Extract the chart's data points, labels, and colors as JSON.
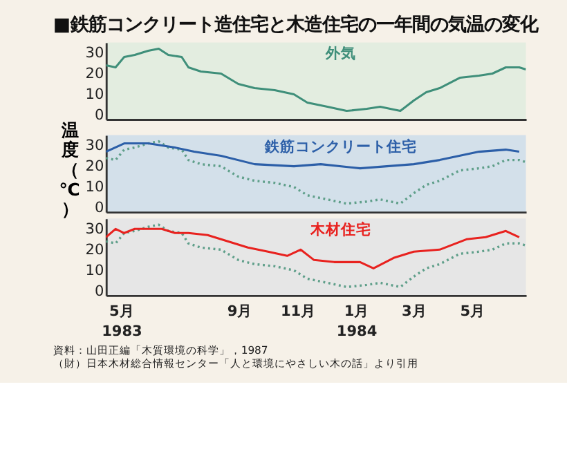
{
  "chart_data": [
    {
      "type": "line",
      "title": "■鉄筋コンクリート造住宅と木造住宅の一年間の気温の変化",
      "xlim": [
        "1983-04-15",
        "1984-06-26"
      ],
      "ylim": [
        -2,
        35
      ],
      "yticks": [
        0,
        10,
        20,
        30
      ],
      "tick_labels": "y",
      "grid": false,
      "marker": "none",
      "series": [
        {
          "name": "外気",
          "color": "#3f8f7a",
          "line_style": "solid",
          "x": [
            "1983-04-15",
            "1983-04-25",
            "1983-05-04",
            "1983-05-15",
            "1983-05-29",
            "1983-06-09",
            "1983-06-19",
            "1983-07-03",
            "1983-07-10",
            "1983-07-23",
            "1983-08-13",
            "1983-08-31",
            "1983-09-17",
            "1983-10-08",
            "1983-10-28",
            "1983-11-11",
            "1983-12-02",
            "1983-12-22",
            "1984-01-12",
            "1984-01-26",
            "1984-02-16",
            "1984-03-01",
            "1984-03-14",
            "1984-03-28",
            "1984-04-18",
            "1984-05-08",
            "1984-05-22",
            "1984-06-05",
            "1984-06-19",
            "1984-06-26"
          ],
          "values": [
            24,
            23,
            28,
            29,
            31,
            32,
            29,
            28,
            23,
            21,
            20,
            15,
            13,
            12,
            10,
            6,
            4,
            2,
            3,
            4,
            2,
            7,
            11,
            13,
            18,
            19,
            20,
            23,
            23,
            22
          ]
        }
      ]
    },
    {
      "type": "line",
      "xlim": [
        "1983-04-15",
        "1984-06-26"
      ],
      "ylim": [
        -2,
        35
      ],
      "yticks": [
        0,
        10,
        20,
        30
      ],
      "tick_labels": "y",
      "ylabel": "温度（℃）",
      "grid": false,
      "marker": "none",
      "series": [
        {
          "color": "#5f9f8a",
          "line_style": "dotted",
          "x": [
            "1983-04-15",
            "1983-04-25",
            "1983-05-04",
            "1983-05-15",
            "1983-05-29",
            "1983-06-09",
            "1983-06-19",
            "1983-07-03",
            "1983-07-10",
            "1983-07-23",
            "1983-08-13",
            "1983-08-31",
            "1983-09-17",
            "1983-10-08",
            "1983-10-28",
            "1983-11-11",
            "1983-12-02",
            "1983-12-22",
            "1984-01-12",
            "1984-01-26",
            "1984-02-16",
            "1984-03-01",
            "1984-03-14",
            "1984-03-28",
            "1984-04-18",
            "1984-05-08",
            "1984-05-22",
            "1984-06-05",
            "1984-06-19",
            "1984-06-26"
          ],
          "values": [
            24,
            23,
            28,
            29,
            31,
            32,
            29,
            28,
            23,
            21,
            20,
            15,
            13,
            12,
            10,
            6,
            4,
            2,
            3,
            4,
            2,
            7,
            11,
            13,
            18,
            19,
            20,
            23,
            23,
            22
          ]
        },
        {
          "name": "鉄筋コンクリート住宅",
          "color": "#2c5fa8",
          "line_style": "solid",
          "x": [
            "1983-04-15",
            "1983-05-04",
            "1983-05-29",
            "1983-06-26",
            "1983-07-16",
            "1983-08-13",
            "1983-09-17",
            "1983-10-28",
            "1983-11-25",
            "1984-01-05",
            "1984-02-02",
            "1984-03-01",
            "1984-03-28",
            "1984-05-08",
            "1984-06-05",
            "1984-06-19"
          ],
          "values": [
            27,
            31,
            31,
            29,
            27,
            25,
            21,
            20,
            21,
            19,
            20,
            21,
            23,
            27,
            28,
            27
          ]
        }
      ]
    },
    {
      "type": "line",
      "xlim": [
        "1983-04-15",
        "1984-06-26"
      ],
      "xticks": [
        {
          "value": "1983-05-01",
          "label": "5月\n1983"
        },
        {
          "value": "1983-09-01",
          "label": "9月"
        },
        {
          "value": "1983-11-01",
          "label": "11月"
        },
        {
          "value": "1984-01-01",
          "label": "1月\n1984"
        },
        {
          "value": "1984-03-01",
          "label": "3月"
        },
        {
          "value": "1984-05-01",
          "label": "5月"
        }
      ],
      "ylim": [
        -2,
        35
      ],
      "yticks": [
        0,
        10,
        20,
        30
      ],
      "grid": false,
      "marker": "none",
      "annotations": [
        "資料：山田正編「木質環境の科学」，1987",
        "（財）日本木材総合情報センター「人と環境にやさしい木の話」より引用"
      ],
      "series": [
        {
          "color": "#5f9f8a",
          "line_style": "dotted",
          "x": [
            "1983-04-15",
            "1983-04-25",
            "1983-05-04",
            "1983-05-15",
            "1983-05-29",
            "1983-06-09",
            "1983-06-19",
            "1983-07-03",
            "1983-07-10",
            "1983-07-23",
            "1983-08-13",
            "1983-08-31",
            "1983-09-17",
            "1983-10-08",
            "1983-10-28",
            "1983-11-11",
            "1983-12-02",
            "1983-12-22",
            "1984-01-12",
            "1984-01-26",
            "1984-02-16",
            "1984-03-01",
            "1984-03-14",
            "1984-03-28",
            "1984-04-18",
            "1984-05-08",
            "1984-05-22",
            "1984-06-05",
            "1984-06-19",
            "1984-06-26"
          ],
          "values": [
            24,
            23,
            28,
            29,
            31,
            32,
            29,
            28,
            23,
            21,
            20,
            15,
            13,
            12,
            10,
            6,
            4,
            2,
            3,
            4,
            2,
            7,
            11,
            13,
            18,
            19,
            20,
            23,
            23,
            22
          ]
        },
        {
          "name": "木材住宅",
          "color": "#e8221f",
          "line_style": "solid",
          "x": [
            "1983-04-15",
            "1983-04-25",
            "1983-05-04",
            "1983-05-15",
            "1983-06-12",
            "1983-06-26",
            "1983-07-10",
            "1983-07-30",
            "1983-08-20",
            "1983-09-10",
            "1983-10-01",
            "1983-10-21",
            "1983-11-04",
            "1983-11-18",
            "1983-12-09",
            "1984-01-05",
            "1984-01-19",
            "1984-02-09",
            "1984-03-01",
            "1984-03-28",
            "1984-04-25",
            "1984-05-15",
            "1984-06-05",
            "1984-06-19"
          ],
          "values": [
            26,
            30,
            28,
            30,
            30,
            28,
            28,
            27,
            24,
            21,
            19,
            17,
            20,
            15,
            14,
            14,
            11,
            16,
            19,
            20,
            25,
            26,
            29,
            26
          ]
        }
      ]
    }
  ]
}
